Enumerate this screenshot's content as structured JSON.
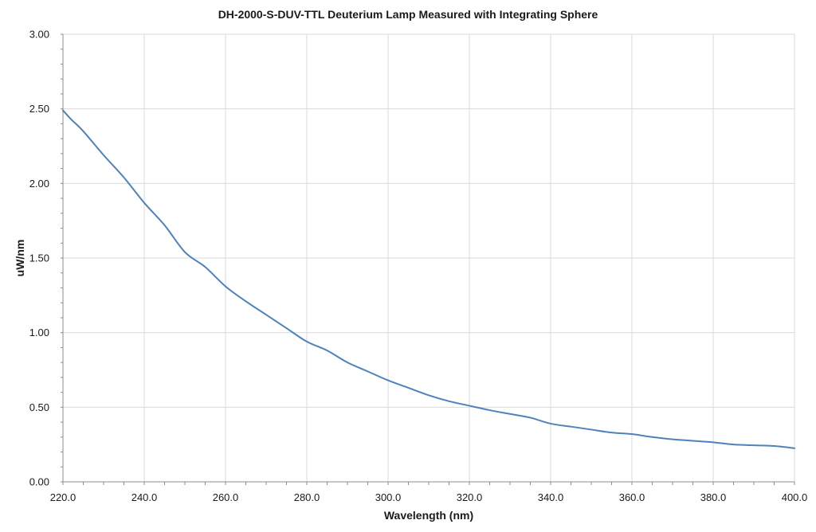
{
  "chart_data": {
    "type": "line",
    "title": "DH-2000-S-DUV-TTL Deuterium Lamp Measured with  Integrating Sphere",
    "xlabel": "Wavelength (nm)",
    "ylabel": "uW/nm",
    "xlim": [
      220,
      400
    ],
    "ylim": [
      0,
      3
    ],
    "x_ticks": [
      "220.0",
      "240.0",
      "260.0",
      "280.0",
      "300.0",
      "320.0",
      "340.0",
      "360.0",
      "380.0",
      "400.0"
    ],
    "y_ticks": [
      "0.00",
      "0.50",
      "1.00",
      "1.50",
      "2.00",
      "2.50",
      "3.00"
    ],
    "grid": true,
    "legend": "none",
    "series_color": "#4f81bd",
    "series": [
      {
        "x": [
          220,
          222,
          225,
          230,
          235,
          240,
          245,
          250,
          255,
          260,
          265,
          270,
          275,
          280,
          285,
          290,
          295,
          300,
          305,
          310,
          315,
          320,
          325,
          330,
          335,
          340,
          345,
          350,
          355,
          360,
          365,
          370,
          375,
          380,
          385,
          390,
          395,
          400
        ],
        "y": [
          2.49,
          2.43,
          2.35,
          2.19,
          2.04,
          1.87,
          1.72,
          1.54,
          1.44,
          1.31,
          1.21,
          1.12,
          1.03,
          0.94,
          0.88,
          0.8,
          0.74,
          0.68,
          0.63,
          0.58,
          0.54,
          0.51,
          0.48,
          0.455,
          0.43,
          0.39,
          0.37,
          0.35,
          0.33,
          0.32,
          0.3,
          0.285,
          0.275,
          0.265,
          0.25,
          0.245,
          0.24,
          0.225
        ]
      }
    ]
  }
}
